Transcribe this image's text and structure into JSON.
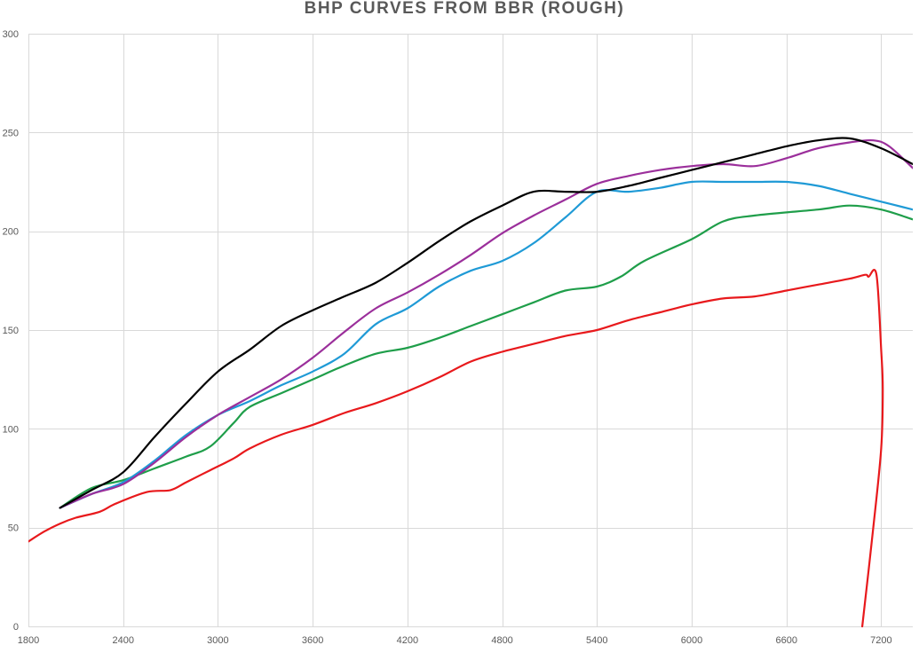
{
  "chart_data": {
    "type": "line",
    "title": "BHP CURVES FROM BBR (ROUGH)",
    "xlabel": "",
    "ylabel": "",
    "xlim": [
      1800,
      7400
    ],
    "ylim": [
      0,
      300
    ],
    "x_ticks": [
      1800,
      2400,
      3000,
      3600,
      4200,
      4800,
      5400,
      6000,
      6600,
      7200
    ],
    "y_ticks": [
      0,
      50,
      100,
      150,
      200,
      250,
      300
    ],
    "grid": true,
    "legend": "none",
    "series": [
      {
        "color": "#1f9e4a",
        "points": [
          [
            2000,
            60
          ],
          [
            2200,
            70
          ],
          [
            2400,
            74
          ],
          [
            2600,
            80
          ],
          [
            2800,
            86
          ],
          [
            2950,
            91
          ],
          [
            3100,
            103
          ],
          [
            3200,
            111
          ],
          [
            3400,
            118
          ],
          [
            3600,
            125
          ],
          [
            3800,
            132
          ],
          [
            4000,
            138
          ],
          [
            4200,
            141
          ],
          [
            4400,
            146
          ],
          [
            4600,
            152
          ],
          [
            4800,
            158
          ],
          [
            5000,
            164
          ],
          [
            5200,
            170
          ],
          [
            5400,
            172
          ],
          [
            5550,
            177
          ],
          [
            5700,
            185
          ],
          [
            6000,
            196
          ],
          [
            6200,
            205
          ],
          [
            6400,
            208
          ],
          [
            6800,
            211
          ],
          [
            7000,
            213
          ],
          [
            7200,
            211
          ],
          [
            7400,
            206
          ]
        ]
      },
      {
        "color": "#1f9ad6",
        "points": [
          [
            2000,
            60
          ],
          [
            2200,
            67
          ],
          [
            2400,
            73
          ],
          [
            2600,
            84
          ],
          [
            2800,
            97
          ],
          [
            3000,
            107
          ],
          [
            3200,
            114
          ],
          [
            3400,
            122
          ],
          [
            3600,
            129
          ],
          [
            3800,
            138
          ],
          [
            4000,
            153
          ],
          [
            4200,
            161
          ],
          [
            4400,
            172
          ],
          [
            4600,
            180
          ],
          [
            4800,
            185
          ],
          [
            5000,
            194
          ],
          [
            5200,
            207
          ],
          [
            5400,
            220
          ],
          [
            5600,
            220
          ],
          [
            5800,
            222
          ],
          [
            6000,
            225
          ],
          [
            6200,
            225
          ],
          [
            6400,
            225
          ],
          [
            6600,
            225
          ],
          [
            6800,
            223
          ],
          [
            7000,
            219
          ],
          [
            7200,
            215
          ],
          [
            7400,
            211
          ]
        ]
      },
      {
        "color": "#9b2f9b",
        "points": [
          [
            2000,
            60
          ],
          [
            2200,
            67
          ],
          [
            2400,
            72
          ],
          [
            2600,
            83
          ],
          [
            2800,
            96
          ],
          [
            3000,
            107
          ],
          [
            3200,
            116
          ],
          [
            3400,
            125
          ],
          [
            3600,
            136
          ],
          [
            3800,
            149
          ],
          [
            4000,
            161
          ],
          [
            4200,
            169
          ],
          [
            4400,
            178
          ],
          [
            4600,
            188
          ],
          [
            4800,
            199
          ],
          [
            5000,
            208
          ],
          [
            5200,
            216
          ],
          [
            5400,
            224
          ],
          [
            5600,
            228
          ],
          [
            5800,
            231
          ],
          [
            6000,
            233
          ],
          [
            6200,
            234
          ],
          [
            6400,
            233
          ],
          [
            6600,
            237
          ],
          [
            6800,
            242
          ],
          [
            7000,
            245
          ],
          [
            7150,
            246
          ],
          [
            7250,
            243
          ],
          [
            7400,
            232
          ]
        ]
      },
      {
        "color": "#000000",
        "points": [
          [
            2000,
            60
          ],
          [
            2200,
            69
          ],
          [
            2400,
            78
          ],
          [
            2600,
            96
          ],
          [
            2800,
            113
          ],
          [
            3000,
            129
          ],
          [
            3200,
            140
          ],
          [
            3400,
            152
          ],
          [
            3600,
            160
          ],
          [
            3800,
            167
          ],
          [
            4000,
            174
          ],
          [
            4200,
            184
          ],
          [
            4400,
            195
          ],
          [
            4600,
            205
          ],
          [
            4800,
            213
          ],
          [
            5000,
            220
          ],
          [
            5200,
            220
          ],
          [
            5400,
            220
          ],
          [
            5600,
            223
          ],
          [
            5800,
            227
          ],
          [
            6000,
            231
          ],
          [
            6200,
            235
          ],
          [
            6400,
            239
          ],
          [
            6600,
            243
          ],
          [
            6800,
            246
          ],
          [
            7000,
            247
          ],
          [
            7200,
            242
          ],
          [
            7400,
            234
          ]
        ]
      },
      {
        "color": "#e8191c",
        "points": [
          [
            1800,
            43
          ],
          [
            1900,
            48
          ],
          [
            2000,
            52
          ],
          [
            2100,
            55
          ],
          [
            2250,
            58
          ],
          [
            2350,
            62
          ],
          [
            2550,
            68
          ],
          [
            2700,
            69
          ],
          [
            2800,
            73
          ],
          [
            2950,
            79
          ],
          [
            3100,
            85
          ],
          [
            3200,
            90
          ],
          [
            3400,
            97
          ],
          [
            3600,
            102
          ],
          [
            3800,
            108
          ],
          [
            4000,
            113
          ],
          [
            4200,
            119
          ],
          [
            4400,
            126
          ],
          [
            4600,
            134
          ],
          [
            4800,
            139
          ],
          [
            5000,
            143
          ],
          [
            5200,
            147
          ],
          [
            5400,
            150
          ],
          [
            5600,
            155
          ],
          [
            5800,
            159
          ],
          [
            6000,
            163
          ],
          [
            6200,
            166
          ],
          [
            6400,
            167
          ],
          [
            6600,
            170
          ],
          [
            6800,
            173
          ],
          [
            7000,
            176
          ],
          [
            7100,
            178
          ],
          [
            7120,
            177
          ],
          [
            7170,
            178
          ],
          [
            7200,
            140
          ],
          [
            7210,
            120
          ],
          [
            7200,
            90
          ],
          [
            7150,
            50
          ],
          [
            7080,
            0
          ]
        ]
      }
    ]
  }
}
